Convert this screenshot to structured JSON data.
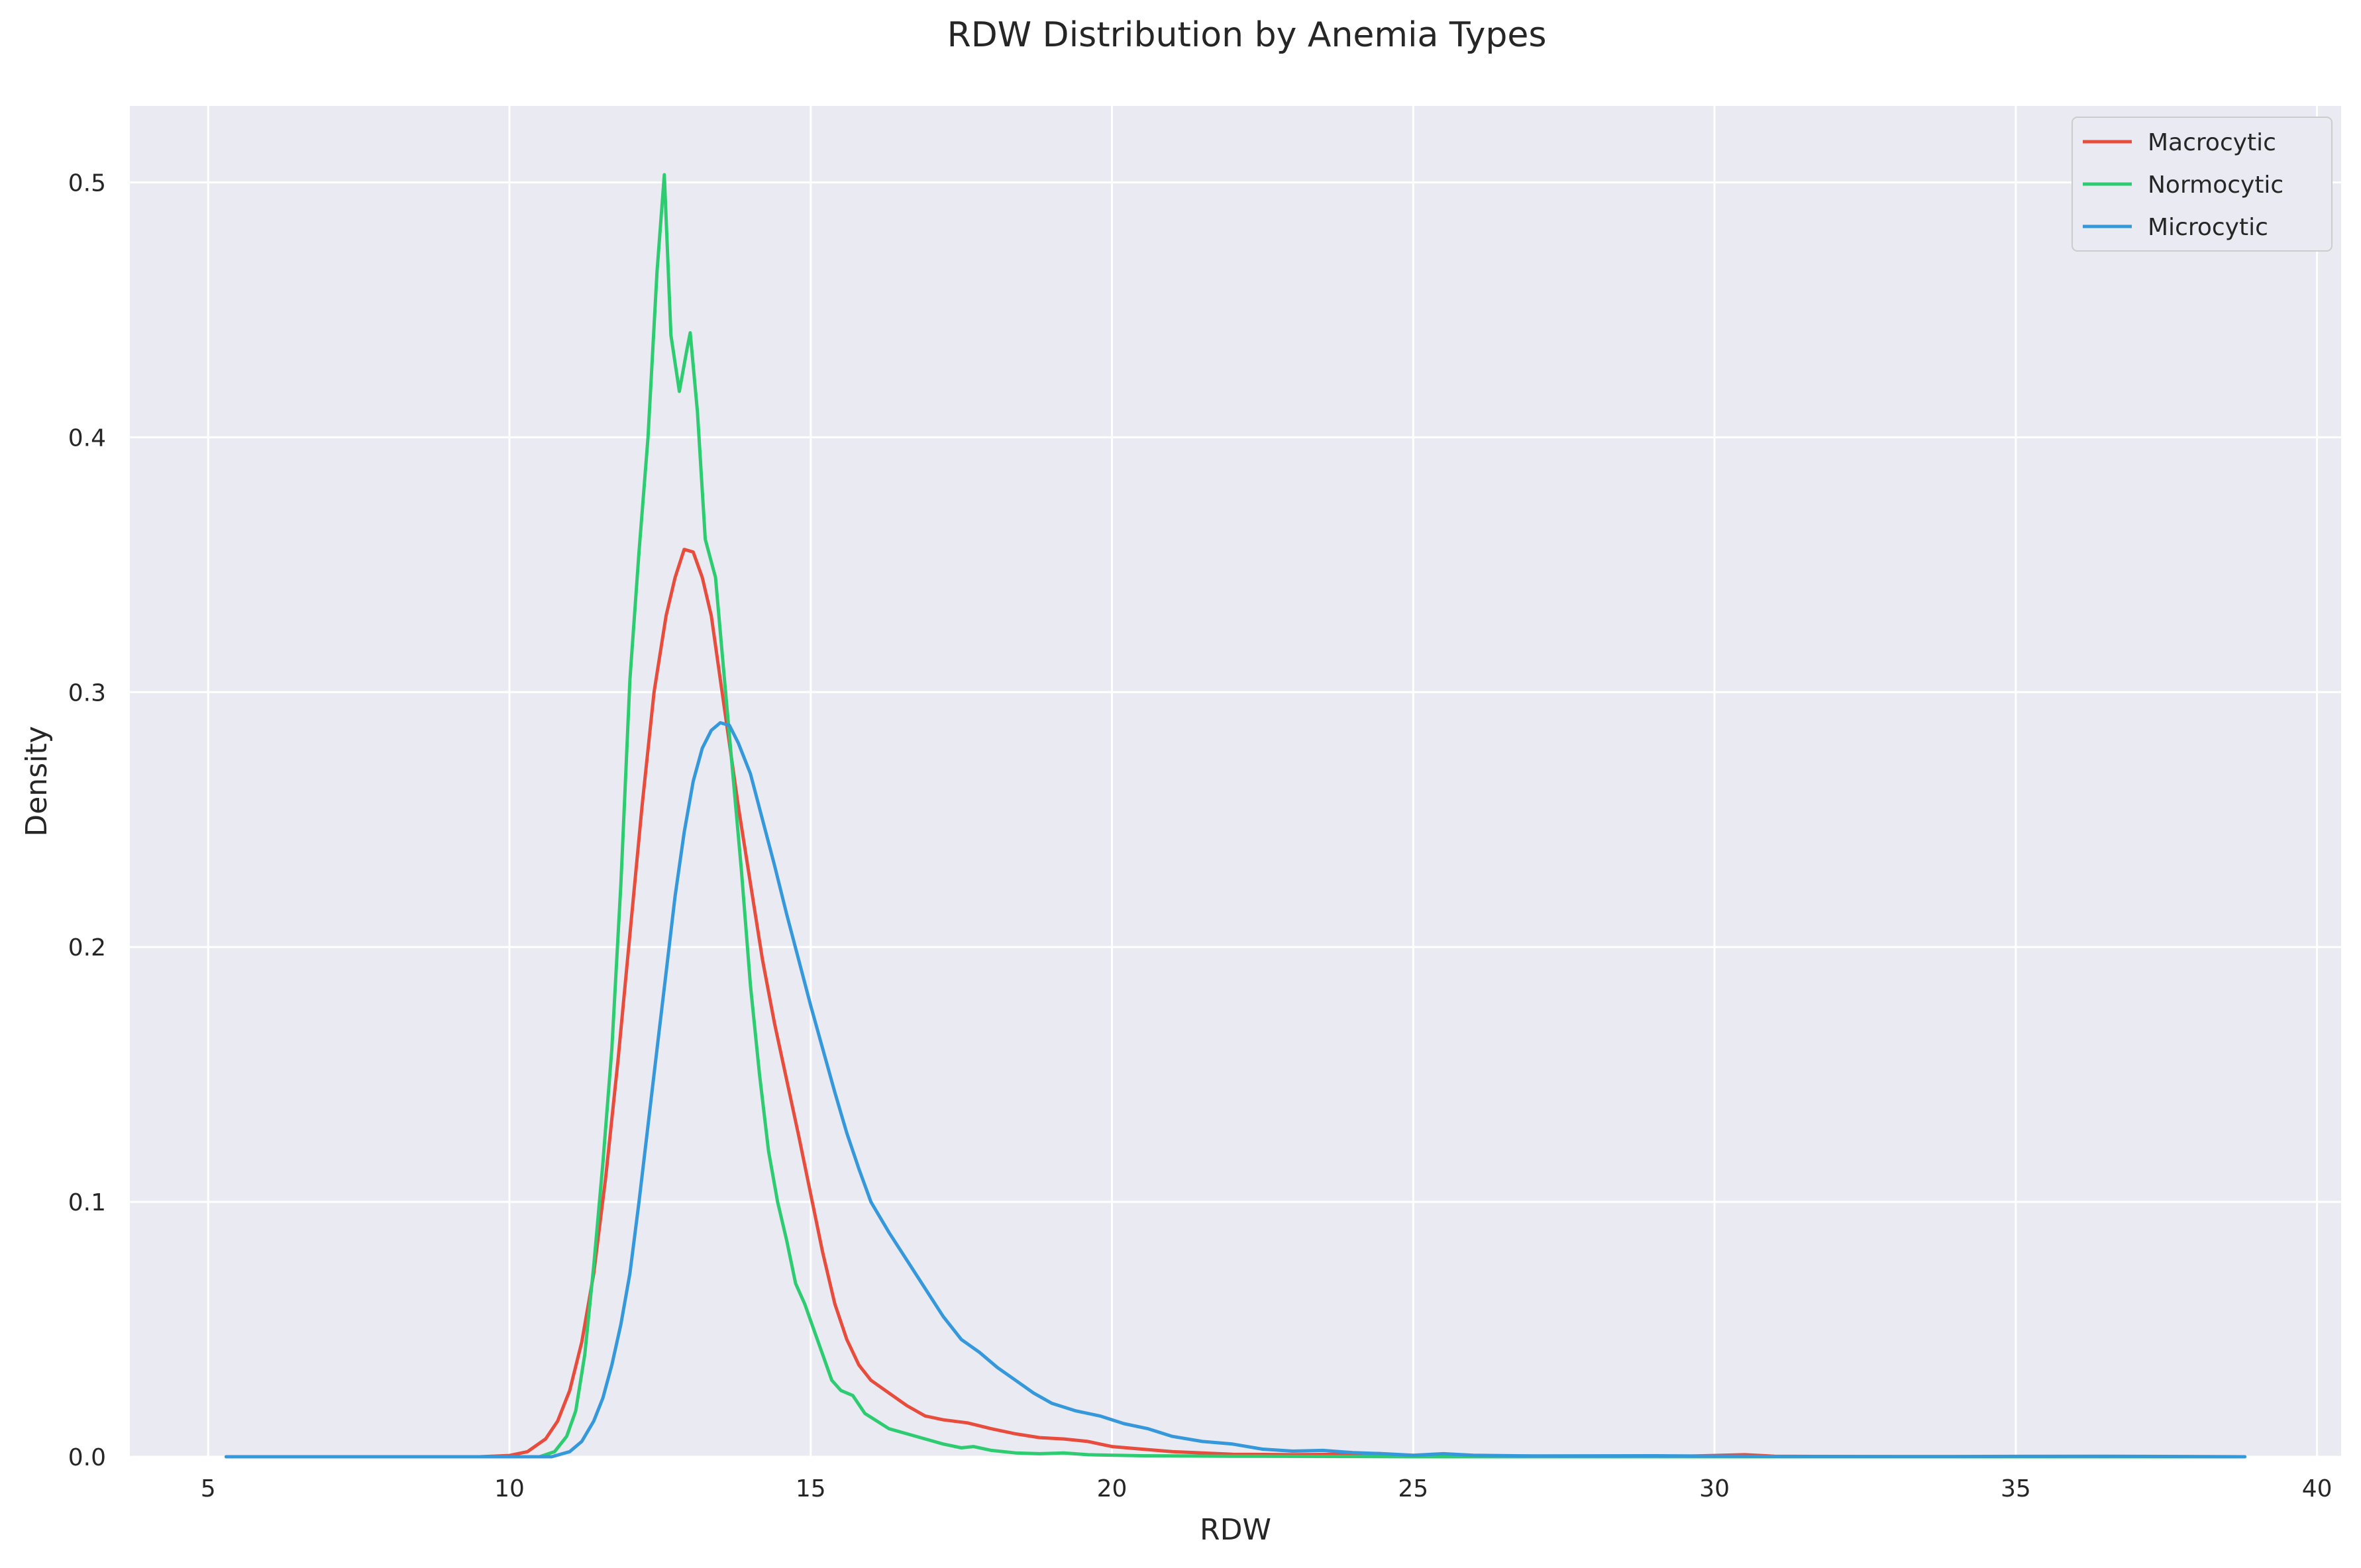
{
  "chart_data": {
    "type": "line",
    "title": "RDW Distribution by Anemia Types",
    "xlabel": "RDW",
    "ylabel": "Density",
    "xlim": [
      3.7,
      40.4
    ],
    "ylim": [
      0,
      0.53
    ],
    "xticks": [
      5,
      10,
      15,
      20,
      25,
      30,
      35,
      40
    ],
    "yticks": [
      0.0,
      0.1,
      0.2,
      0.3,
      0.4,
      0.5
    ],
    "xtick_labels": [
      "5",
      "10",
      "15",
      "20",
      "25",
      "30",
      "35",
      "40"
    ],
    "ytick_labels": [
      "0.0",
      "0.1",
      "0.2",
      "0.3",
      "0.4",
      "0.5"
    ],
    "grid": true,
    "legend_position": "top-right",
    "background": "#eaeaf2",
    "series": [
      {
        "name": "Macrocytic",
        "color": "#e74c3c",
        "points": [
          [
            5.3,
            0.0
          ],
          [
            9.5,
            0.0
          ],
          [
            10.0,
            0.0005
          ],
          [
            10.3,
            0.002
          ],
          [
            10.6,
            0.007
          ],
          [
            10.8,
            0.014
          ],
          [
            11.0,
            0.026
          ],
          [
            11.2,
            0.045
          ],
          [
            11.4,
            0.072
          ],
          [
            11.6,
            0.11
          ],
          [
            11.8,
            0.155
          ],
          [
            12.0,
            0.205
          ],
          [
            12.2,
            0.255
          ],
          [
            12.4,
            0.3
          ],
          [
            12.6,
            0.33
          ],
          [
            12.75,
            0.345
          ],
          [
            12.9,
            0.356
          ],
          [
            13.05,
            0.355
          ],
          [
            13.2,
            0.345
          ],
          [
            13.35,
            0.33
          ],
          [
            13.5,
            0.305
          ],
          [
            13.65,
            0.28
          ],
          [
            13.8,
            0.255
          ],
          [
            14.0,
            0.225
          ],
          [
            14.2,
            0.195
          ],
          [
            14.4,
            0.17
          ],
          [
            14.6,
            0.148
          ],
          [
            14.8,
            0.126
          ],
          [
            15.0,
            0.103
          ],
          [
            15.2,
            0.08
          ],
          [
            15.4,
            0.06
          ],
          [
            15.6,
            0.046
          ],
          [
            15.8,
            0.036
          ],
          [
            16.0,
            0.03
          ],
          [
            16.3,
            0.025
          ],
          [
            16.6,
            0.02
          ],
          [
            16.9,
            0.016
          ],
          [
            17.2,
            0.0145
          ],
          [
            17.6,
            0.0133
          ],
          [
            18.0,
            0.011
          ],
          [
            18.4,
            0.009
          ],
          [
            18.8,
            0.0075
          ],
          [
            19.2,
            0.007
          ],
          [
            19.6,
            0.006
          ],
          [
            20.0,
            0.004
          ],
          [
            20.5,
            0.003
          ],
          [
            21.0,
            0.002
          ],
          [
            22.0,
            0.001
          ],
          [
            23.0,
            0.0008
          ],
          [
            24.0,
            0.001
          ],
          [
            24.4,
            0.0013
          ],
          [
            25.0,
            0.0004
          ],
          [
            27.0,
            0.0001
          ],
          [
            29.5,
            0.0002
          ],
          [
            30.5,
            0.0008
          ],
          [
            31.0,
            0.0002
          ],
          [
            33.0,
            0.0
          ],
          [
            38.8,
            0.0
          ]
        ]
      },
      {
        "name": "Normocytic",
        "color": "#2ecc71",
        "points": [
          [
            5.3,
            0.0
          ],
          [
            10.5,
            0.0
          ],
          [
            10.75,
            0.002
          ],
          [
            10.95,
            0.008
          ],
          [
            11.1,
            0.018
          ],
          [
            11.25,
            0.04
          ],
          [
            11.4,
            0.075
          ],
          [
            11.55,
            0.115
          ],
          [
            11.7,
            0.16
          ],
          [
            11.85,
            0.225
          ],
          [
            12.0,
            0.305
          ],
          [
            12.15,
            0.355
          ],
          [
            12.3,
            0.4
          ],
          [
            12.45,
            0.465
          ],
          [
            12.57,
            0.503
          ],
          [
            12.68,
            0.44
          ],
          [
            12.82,
            0.418
          ],
          [
            12.95,
            0.435
          ],
          [
            13.0,
            0.441
          ],
          [
            13.12,
            0.41
          ],
          [
            13.25,
            0.36
          ],
          [
            13.42,
            0.345
          ],
          [
            13.55,
            0.31
          ],
          [
            13.7,
            0.27
          ],
          [
            13.85,
            0.23
          ],
          [
            14.0,
            0.185
          ],
          [
            14.15,
            0.15
          ],
          [
            14.3,
            0.12
          ],
          [
            14.45,
            0.1
          ],
          [
            14.6,
            0.085
          ],
          [
            14.75,
            0.068
          ],
          [
            14.9,
            0.06
          ],
          [
            15.05,
            0.05
          ],
          [
            15.2,
            0.04
          ],
          [
            15.35,
            0.03
          ],
          [
            15.5,
            0.026
          ],
          [
            15.7,
            0.024
          ],
          [
            15.9,
            0.017
          ],
          [
            16.1,
            0.014
          ],
          [
            16.3,
            0.011
          ],
          [
            16.6,
            0.009
          ],
          [
            16.9,
            0.007
          ],
          [
            17.2,
            0.005
          ],
          [
            17.5,
            0.0035
          ],
          [
            17.7,
            0.004
          ],
          [
            18.0,
            0.0025
          ],
          [
            18.4,
            0.0015
          ],
          [
            18.8,
            0.0012
          ],
          [
            19.2,
            0.0015
          ],
          [
            19.6,
            0.0008
          ],
          [
            20.5,
            0.0004
          ],
          [
            22.0,
            0.0002
          ],
          [
            24.0,
            0.0001
          ],
          [
            25.0,
            0.0
          ],
          [
            38.8,
            0.0
          ]
        ]
      },
      {
        "name": "Microcytic",
        "color": "#3498db",
        "points": [
          [
            5.3,
            0.0
          ],
          [
            10.7,
            0.0
          ],
          [
            11.0,
            0.002
          ],
          [
            11.2,
            0.006
          ],
          [
            11.4,
            0.014
          ],
          [
            11.55,
            0.023
          ],
          [
            11.7,
            0.036
          ],
          [
            11.85,
            0.052
          ],
          [
            12.0,
            0.072
          ],
          [
            12.15,
            0.1
          ],
          [
            12.3,
            0.13
          ],
          [
            12.45,
            0.16
          ],
          [
            12.6,
            0.19
          ],
          [
            12.75,
            0.22
          ],
          [
            12.9,
            0.245
          ],
          [
            13.05,
            0.265
          ],
          [
            13.2,
            0.278
          ],
          [
            13.35,
            0.285
          ],
          [
            13.5,
            0.288
          ],
          [
            13.65,
            0.287
          ],
          [
            13.8,
            0.28
          ],
          [
            14.0,
            0.268
          ],
          [
            14.2,
            0.25
          ],
          [
            14.4,
            0.232
          ],
          [
            14.6,
            0.213
          ],
          [
            14.8,
            0.195
          ],
          [
            15.0,
            0.177
          ],
          [
            15.2,
            0.16
          ],
          [
            15.4,
            0.143
          ],
          [
            15.6,
            0.127
          ],
          [
            15.8,
            0.113
          ],
          [
            16.0,
            0.1
          ],
          [
            16.3,
            0.088
          ],
          [
            16.6,
            0.077
          ],
          [
            16.9,
            0.066
          ],
          [
            17.2,
            0.055
          ],
          [
            17.5,
            0.046
          ],
          [
            17.8,
            0.041
          ],
          [
            18.1,
            0.035
          ],
          [
            18.4,
            0.03
          ],
          [
            18.7,
            0.025
          ],
          [
            19.0,
            0.021
          ],
          [
            19.4,
            0.018
          ],
          [
            19.8,
            0.016
          ],
          [
            20.2,
            0.013
          ],
          [
            20.6,
            0.011
          ],
          [
            21.0,
            0.008
          ],
          [
            21.5,
            0.006
          ],
          [
            22.0,
            0.005
          ],
          [
            22.5,
            0.003
          ],
          [
            23.0,
            0.0022
          ],
          [
            23.5,
            0.0025
          ],
          [
            24.0,
            0.0016
          ],
          [
            24.5,
            0.0012
          ],
          [
            25.0,
            0.0006
          ],
          [
            25.5,
            0.0012
          ],
          [
            26.0,
            0.0006
          ],
          [
            27.0,
            0.0003
          ],
          [
            29.0,
            0.0004
          ],
          [
            31.0,
            0.0001
          ],
          [
            34.0,
            0.0001
          ],
          [
            36.5,
            0.0002
          ],
          [
            38.8,
            0.0
          ]
        ]
      }
    ]
  }
}
